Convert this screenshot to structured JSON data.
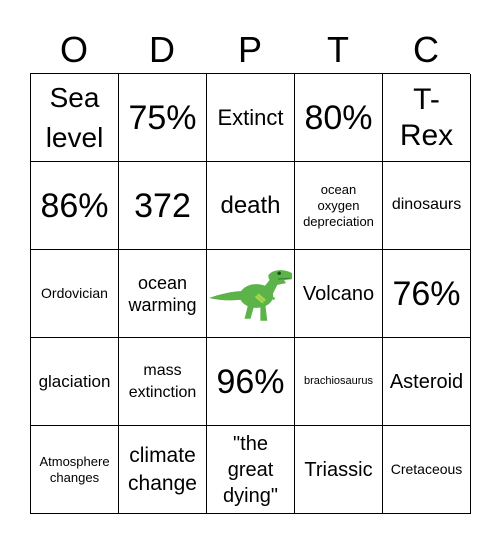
{
  "header": {
    "letters": [
      "O",
      "D",
      "P",
      "T",
      "C"
    ]
  },
  "cells": [
    "Sea level",
    "75%",
    "Extinct",
    "80%",
    "T-Rex",
    "86%",
    "372",
    "death",
    "ocean oxygen depreciation",
    "dinosaurs",
    "Ordovician",
    "ocean warming",
    "",
    "Volcano",
    "76%",
    "glaciation",
    "mass extinction",
    "96%",
    "brachiosaurus",
    "Asteroid",
    "Atmosphere changes",
    "climate change",
    "\"the great dying\"",
    "Triassic",
    "Cretaceous"
  ],
  "free_space": {
    "icon": "t-rex-dinosaur-icon",
    "color": "#5bb34a"
  }
}
